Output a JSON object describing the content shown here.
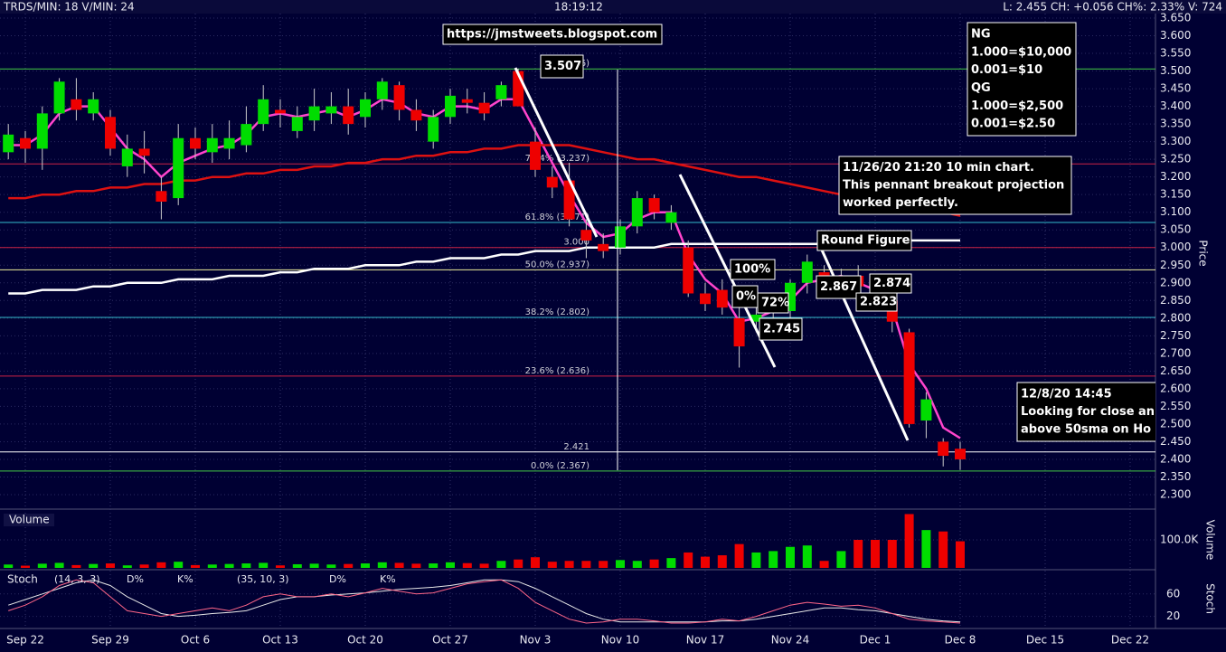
{
  "header": {
    "left": "TRDS/MIN: 18 V/MIN: 24",
    "center": "18:19:12",
    "right": "L: 2.455 CH: +0.056 CH%: 2.33% V: 724"
  },
  "chart_data": [
    {
      "type": "candlestick",
      "y_label": "Price",
      "grid": true,
      "up_color": "#00dd00",
      "down_color": "#ee0000",
      "categories": [
        null,
        "Sep 22",
        null,
        null,
        null,
        null,
        "Sep 29",
        null,
        null,
        null,
        null,
        "Oct 6",
        null,
        null,
        null,
        null,
        "Oct 13",
        null,
        null,
        null,
        null,
        "Oct 20",
        null,
        null,
        null,
        null,
        "Oct 27",
        null,
        null,
        null,
        null,
        "Nov 3",
        null,
        null,
        null,
        null,
        "Nov 10",
        null,
        null,
        null,
        null,
        "Nov 17",
        null,
        null,
        null,
        null,
        "Nov 24",
        null,
        null,
        null,
        null,
        "Dec 1",
        null,
        null,
        null,
        null,
        "Dec 8",
        null,
        null,
        null,
        null,
        "Dec 15",
        null,
        null,
        null,
        null,
        "Dec 22"
      ],
      "open": [
        3.27,
        3.31,
        3.28,
        3.38,
        3.42,
        3.38,
        3.37,
        3.23,
        3.28,
        3.16,
        3.14,
        3.31,
        3.27,
        3.28,
        3.29,
        3.35,
        3.39,
        3.33,
        3.36,
        3.38,
        3.4,
        3.37,
        3.42,
        3.46,
        3.39,
        3.3,
        3.37,
        3.42,
        3.41,
        3.42,
        3.5,
        3.3,
        3.2,
        3.19,
        3.05,
        3.01,
        3.0,
        3.06,
        3.14,
        3.07,
        3.0,
        2.87,
        2.88,
        2.8,
        2.79,
        2.83,
        2.82,
        2.9,
        2.93,
        2.9,
        2.92,
        2.88,
        2.85,
        2.76,
        2.51,
        2.45,
        2.43,
        null,
        null,
        null,
        null,
        null,
        null,
        null,
        null,
        null,
        null
      ],
      "high": [
        3.35,
        3.33,
        3.4,
        3.48,
        3.48,
        3.44,
        3.39,
        3.32,
        3.33,
        3.2,
        3.35,
        3.34,
        3.35,
        3.36,
        3.4,
        3.46,
        3.42,
        3.4,
        3.45,
        3.44,
        3.45,
        3.44,
        3.48,
        3.47,
        3.42,
        3.39,
        3.45,
        3.45,
        3.44,
        3.47,
        3.507,
        3.34,
        3.23,
        3.24,
        3.08,
        3.04,
        3.08,
        3.16,
        3.15,
        3.12,
        3.02,
        2.9,
        2.91,
        2.84,
        2.83,
        2.87,
        2.91,
        2.98,
        2.95,
        2.94,
        2.95,
        2.9,
        2.87,
        2.77,
        2.59,
        2.46,
        2.45,
        null,
        null,
        null,
        null,
        null,
        null,
        null,
        null,
        null,
        null
      ],
      "low": [
        3.25,
        3.24,
        3.22,
        3.36,
        3.36,
        3.36,
        3.26,
        3.2,
        3.21,
        3.08,
        3.12,
        3.25,
        3.24,
        3.25,
        3.27,
        3.33,
        3.34,
        3.31,
        3.33,
        3.35,
        3.32,
        3.34,
        3.39,
        3.36,
        3.33,
        3.28,
        3.35,
        3.38,
        3.36,
        3.4,
        3.4,
        3.2,
        3.14,
        3.06,
        2.97,
        2.97,
        2.98,
        3.04,
        3.08,
        3.05,
        2.86,
        2.82,
        2.81,
        2.66,
        2.76,
        2.8,
        2.8,
        2.87,
        2.89,
        2.88,
        2.88,
        2.83,
        2.76,
        2.49,
        2.46,
        2.38,
        2.37,
        null,
        null,
        null,
        null,
        null,
        null,
        null,
        null,
        null,
        null
      ],
      "close": [
        3.32,
        3.28,
        3.38,
        3.47,
        3.39,
        3.42,
        3.28,
        3.28,
        3.26,
        3.13,
        3.31,
        3.28,
        3.31,
        3.31,
        3.35,
        3.42,
        3.38,
        3.37,
        3.4,
        3.4,
        3.35,
        3.42,
        3.47,
        3.39,
        3.36,
        3.37,
        3.43,
        3.41,
        3.38,
        3.46,
        3.4,
        3.22,
        3.17,
        3.08,
        3.02,
        2.99,
        3.06,
        3.14,
        3.1,
        3.1,
        2.87,
        2.84,
        2.83,
        2.72,
        2.81,
        2.85,
        2.9,
        2.96,
        2.92,
        2.92,
        2.89,
        2.86,
        2.79,
        2.5,
        2.57,
        2.41,
        2.4,
        null,
        null,
        null,
        null,
        null,
        null,
        null,
        null,
        null,
        null
      ],
      "series": [
        {
          "color": "#ff44cc",
          "values": [
            3.29,
            3.29,
            3.32,
            3.38,
            3.4,
            3.4,
            3.34,
            3.28,
            3.25,
            3.2,
            3.24,
            3.26,
            3.28,
            3.29,
            3.32,
            3.37,
            3.38,
            3.37,
            3.38,
            3.39,
            3.37,
            3.39,
            3.42,
            3.41,
            3.38,
            3.37,
            3.4,
            3.4,
            3.39,
            3.42,
            3.42,
            3.33,
            3.24,
            3.15,
            3.07,
            3.03,
            3.04,
            3.08,
            3.1,
            3.1,
            2.98,
            2.91,
            2.87,
            2.79,
            2.8,
            2.82,
            2.85,
            2.9,
            2.91,
            2.92,
            2.9,
            2.88,
            2.83,
            2.67,
            2.6,
            2.49,
            2.46,
            null,
            null,
            null,
            null,
            null,
            null,
            null,
            null,
            null,
            null
          ]
        },
        {
          "color": "#dd1111",
          "values": [
            3.14,
            3.14,
            3.15,
            3.15,
            3.16,
            3.16,
            3.17,
            3.17,
            3.18,
            3.18,
            3.19,
            3.19,
            3.2,
            3.2,
            3.21,
            3.21,
            3.22,
            3.22,
            3.23,
            3.23,
            3.24,
            3.24,
            3.25,
            3.25,
            3.26,
            3.26,
            3.27,
            3.27,
            3.28,
            3.28,
            3.29,
            3.29,
            3.29,
            3.29,
            3.28,
            3.27,
            3.26,
            3.25,
            3.25,
            3.24,
            3.23,
            3.22,
            3.21,
            3.2,
            3.2,
            3.19,
            3.18,
            3.17,
            3.16,
            3.15,
            3.14,
            3.13,
            3.13,
            3.12,
            3.11,
            3.1,
            3.09,
            null,
            null,
            null,
            null,
            null,
            null,
            null,
            null,
            null,
            null
          ]
        },
        {
          "color": "#ffffff",
          "values": [
            2.87,
            2.87,
            2.88,
            2.88,
            2.88,
            2.89,
            2.89,
            2.9,
            2.9,
            2.9,
            2.91,
            2.91,
            2.91,
            2.92,
            2.92,
            2.92,
            2.93,
            2.93,
            2.94,
            2.94,
            2.94,
            2.95,
            2.95,
            2.95,
            2.96,
            2.96,
            2.97,
            2.97,
            2.97,
            2.98,
            2.98,
            2.99,
            2.99,
            2.99,
            3.0,
            3.0,
            3.0,
            3.0,
            3.0,
            3.01,
            3.01,
            3.01,
            3.01,
            3.01,
            3.01,
            3.01,
            3.01,
            3.01,
            3.01,
            3.02,
            3.02,
            3.02,
            3.02,
            3.02,
            3.02,
            3.02,
            3.02,
            null,
            null,
            null,
            null,
            null,
            null,
            null,
            null,
            null,
            null
          ]
        }
      ],
      "levels": [
        {
          "value": 3.506,
          "label": "(3.506)",
          "color": "#44cc44"
        },
        {
          "value": 3.237,
          "label": "76.4% (3.237)",
          "color": "#cc2244"
        },
        {
          "value": 3.071,
          "label": "61.8% (3.071)",
          "color": "#33bbcc"
        },
        {
          "value": 3.0,
          "label": "3.000",
          "color": "#cc2244"
        },
        {
          "value": 2.937,
          "label": "50.0% (2.937)",
          "color": "#eeee99"
        },
        {
          "value": 2.802,
          "label": "38.2% (2.802)",
          "color": "#33bbcc"
        },
        {
          "value": 2.636,
          "label": "23.6% (2.636)",
          "color": "#cc2244"
        },
        {
          "value": 2.421,
          "label": "2.421",
          "color": "#ffffff"
        },
        {
          "value": 2.367,
          "label": "0.0% (2.367)",
          "color": "#44cc44"
        }
      ],
      "ylim": [
        2.25,
        3.68
      ],
      "yticks": [
        {
          "value": 2.3,
          "label": "2.300"
        },
        {
          "value": 2.35,
          "label": "2.350"
        },
        {
          "value": 2.4,
          "label": "2.400"
        },
        {
          "value": 2.45,
          "label": "2.450"
        },
        {
          "value": 2.5,
          "label": "2.500"
        },
        {
          "value": 2.55,
          "label": "2.550"
        },
        {
          "value": 2.6,
          "label": "2.600"
        },
        {
          "value": 2.65,
          "label": "2.650"
        },
        {
          "value": 2.7,
          "label": "2.700"
        },
        {
          "value": 2.75,
          "label": "2.750"
        },
        {
          "value": 2.8,
          "label": "2.800"
        },
        {
          "value": 2.85,
          "label": "2.850"
        },
        {
          "value": 2.9,
          "label": "2.900"
        },
        {
          "value": 2.95,
          "label": "2.950"
        },
        {
          "value": 3.0,
          "label": "3.000"
        },
        {
          "value": 3.05,
          "label": "3.050"
        },
        {
          "value": 3.1,
          "label": "3.100"
        },
        {
          "value": 3.15,
          "label": "3.150"
        },
        {
          "value": 3.2,
          "label": "3.200"
        },
        {
          "value": 3.25,
          "label": "3.250"
        },
        {
          "value": 3.3,
          "label": "3.300"
        },
        {
          "value": 3.35,
          "label": "3.350"
        },
        {
          "value": 3.4,
          "label": "3.400"
        },
        {
          "value": 3.45,
          "label": "3.450"
        },
        {
          "value": 3.5,
          "label": "3.500"
        },
        {
          "value": 3.55,
          "label": "3.550"
        },
        {
          "value": 3.6,
          "label": "3.600"
        },
        {
          "value": 3.65,
          "label": "3.650"
        }
      ],
      "annotations": [
        [
          "https://jmstweets.blogspot.com"
        ],
        [
          "NG",
          "1.000=$10,000",
          "0.001=$10",
          "QG",
          "1.000=$2,500",
          "0.001=$2.50"
        ],
        [
          "11/26/20 21:20 10 min chart.",
          "This pennant breakout projection",
          "worked perfectly."
        ],
        [
          "12/8/20 14:45",
          "Looking for close an",
          "above 50sma on Ho"
        ],
        [
          "3.507"
        ],
        [
          "Round Figure"
        ],
        [
          "2.867"
        ],
        [
          "2.874"
        ],
        [
          "2.823"
        ],
        [
          "2.745"
        ],
        [
          "100%"
        ],
        [
          "0%"
        ],
        [
          "72%"
        ]
      ]
    },
    {
      "type": "bar",
      "title": "Volume",
      "y_label": "Volume",
      "values": [
        12000,
        8000,
        15000,
        18000,
        10000,
        14000,
        16000,
        9000,
        12000,
        20000,
        22000,
        10000,
        12000,
        14000,
        16000,
        18000,
        9000,
        13000,
        15000,
        12000,
        14000,
        16000,
        20000,
        18000,
        15000,
        16000,
        20000,
        17000,
        15000,
        25000,
        30000,
        38000,
        22000,
        25000,
        25000,
        25000,
        28000,
        25000,
        30000,
        35000,
        55000,
        40000,
        45000,
        85000,
        55000,
        60000,
        75000,
        80000,
        25000,
        60000,
        100000,
        100000,
        100000,
        192000,
        135000,
        130000,
        95000,
        null,
        null,
        null,
        null,
        null,
        null,
        null,
        null,
        null,
        null
      ],
      "ylim": [
        0,
        200000
      ],
      "yticks": [
        {
          "value": 100000,
          "label": "100.0K"
        }
      ]
    },
    {
      "type": "line",
      "title": "Stoch",
      "y_label": "Stoch",
      "params": [
        "(14, 3, 3)",
        "(35, 10, 3)"
      ],
      "series": [
        {
          "name": "D%",
          "color": "#e8e8e8",
          "values": [
            40,
            50,
            60,
            70,
            80,
            85,
            75,
            55,
            40,
            25,
            20,
            22,
            25,
            27,
            30,
            40,
            50,
            55,
            55,
            58,
            60,
            62,
            65,
            68,
            70,
            72,
            75,
            80,
            85,
            85,
            82,
            70,
            55,
            40,
            25,
            15,
            10,
            10,
            10,
            10,
            10,
            10,
            12,
            12,
            15,
            20,
            25,
            30,
            35,
            35,
            32,
            30,
            25,
            20,
            15,
            12,
            10,
            null,
            null,
            null,
            null,
            null,
            null,
            null,
            null,
            null,
            null
          ]
        },
        {
          "name": "K%",
          "color": "#ff6688",
          "values": [
            30,
            40,
            55,
            75,
            85,
            80,
            55,
            30,
            25,
            20,
            25,
            30,
            35,
            30,
            40,
            55,
            60,
            55,
            55,
            60,
            55,
            62,
            70,
            65,
            60,
            62,
            70,
            78,
            82,
            85,
            70,
            45,
            30,
            15,
            8,
            10,
            15,
            15,
            12,
            8,
            8,
            10,
            15,
            12,
            20,
            30,
            40,
            45,
            42,
            38,
            40,
            35,
            25,
            15,
            12,
            10,
            8,
            null,
            null,
            null,
            null,
            null,
            null,
            null,
            null,
            null,
            null
          ]
        }
      ],
      "ylim": [
        0,
        100
      ],
      "yticks": [
        20,
        60
      ]
    }
  ]
}
